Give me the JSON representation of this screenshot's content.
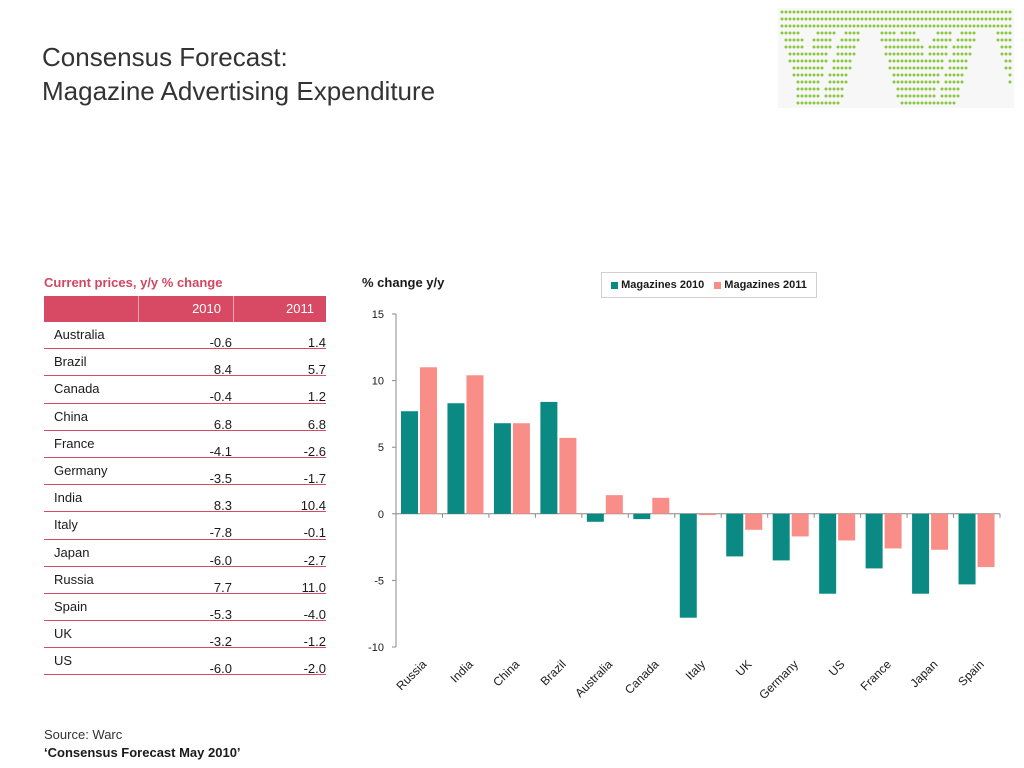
{
  "title_line1": "Consensus Forecast:",
  "title_line2": "Magazine Advertising Expenditure",
  "table": {
    "caption": "Current prices, y/y % change",
    "headers": [
      "",
      "2010",
      "2011"
    ],
    "rows": [
      {
        "country": "Australia",
        "v2010": "-0.6",
        "v2011": "1.4"
      },
      {
        "country": "Brazil",
        "v2010": "8.4",
        "v2011": "5.7"
      },
      {
        "country": "Canada",
        "v2010": "-0.4",
        "v2011": "1.2"
      },
      {
        "country": "China",
        "v2010": "6.8",
        "v2011": "6.8"
      },
      {
        "country": "France",
        "v2010": "-4.1",
        "v2011": "-2.6"
      },
      {
        "country": "Germany",
        "v2010": "-3.5",
        "v2011": "-1.7"
      },
      {
        "country": "India",
        "v2010": "8.3",
        "v2011": "10.4"
      },
      {
        "country": "Italy",
        "v2010": "-7.8",
        "v2011": "-0.1"
      },
      {
        "country": "Japan",
        "v2010": "-6.0",
        "v2011": "-2.7"
      },
      {
        "country": "Russia",
        "v2010": "7.7",
        "v2011": "11.0"
      },
      {
        "country": "Spain",
        "v2010": "-5.3",
        "v2011": "-4.0"
      },
      {
        "country": "UK",
        "v2010": "-3.2",
        "v2011": "-1.2"
      },
      {
        "country": "US",
        "v2010": "-6.0",
        "v2011": "-2.0"
      }
    ]
  },
  "chart_data": {
    "type": "bar",
    "title": "% change y/y",
    "categories": [
      "Russia",
      "India",
      "China",
      "Brazil",
      "Australia",
      "Canada",
      "Italy",
      "UK",
      "Germany",
      "US",
      "France",
      "Japan",
      "Spain"
    ],
    "series": [
      {
        "name": "Magazines 2010",
        "color": "#0b8a84",
        "values": [
          7.7,
          8.3,
          6.8,
          8.4,
          -0.6,
          -0.4,
          -7.8,
          -3.2,
          -3.5,
          -6.0,
          -4.1,
          -6.0,
          -5.3
        ]
      },
      {
        "name": "Magazines 2011",
        "color": "#f98d87",
        "values": [
          11.0,
          10.4,
          6.8,
          5.7,
          1.4,
          1.2,
          -0.1,
          -1.2,
          -1.7,
          -2.0,
          -2.6,
          -2.7,
          -4.0
        ]
      }
    ],
    "ylim": [
      -10,
      15
    ],
    "yticks": [
      "15",
      "10",
      "5",
      "0",
      "-5",
      "-10"
    ],
    "legend_position": "top-right",
    "grid": false
  },
  "source": "Source: Warc",
  "source_title": "‘Consensus Forecast May 2010’",
  "colors": {
    "accent": "#d84a63",
    "logo": "#8cc63f"
  },
  "logo_icon": "wv-dot-logo"
}
